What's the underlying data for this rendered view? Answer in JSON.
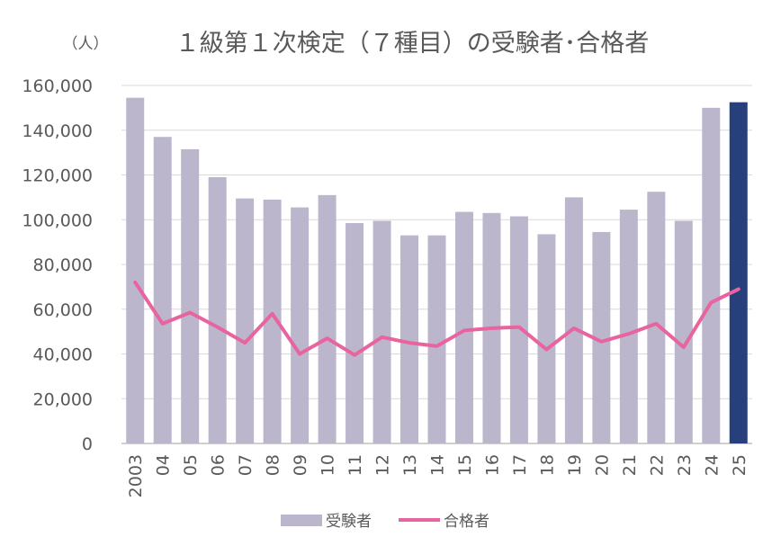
{
  "chart_data": {
    "type": "bar",
    "title": "１級第１次検定（７種目）の受験者･合格者",
    "unit_label": "（人）",
    "categories": [
      "2003",
      "04",
      "05",
      "06",
      "07",
      "08",
      "09",
      "10",
      "11",
      "12",
      "13",
      "14",
      "15",
      "16",
      "17",
      "18",
      "19",
      "20",
      "21",
      "22",
      "23",
      "24",
      "25"
    ],
    "series": [
      {
        "name": "受験者",
        "type": "bar",
        "values": [
          154500,
          137000,
          131500,
          119000,
          109500,
          109000,
          105500,
          111000,
          98500,
          99500,
          93000,
          93000,
          103500,
          103000,
          101500,
          93500,
          110000,
          94500,
          104500,
          112500,
          99500,
          150000,
          152500
        ]
      },
      {
        "name": "合格者",
        "type": "line",
        "values": [
          72000,
          53500,
          58500,
          52000,
          45000,
          58000,
          40000,
          47000,
          39500,
          47500,
          45000,
          43500,
          50500,
          51500,
          52000,
          42000,
          51500,
          45500,
          49000,
          53500,
          43000,
          63000,
          69000
        ]
      }
    ],
    "ylim": [
      0,
      160000
    ],
    "yticks": [
      0,
      20000,
      40000,
      60000,
      80000,
      100000,
      120000,
      140000,
      160000
    ],
    "ytick_labels": [
      "0",
      "20,000",
      "40,000",
      "60,000",
      "80,000",
      "100,000",
      "120,000",
      "140,000",
      "160,000"
    ],
    "grid": true,
    "legend_position": "bottom",
    "colors": {
      "bar": "#bcb6cd",
      "bar_highlight": "#27407c",
      "line": "#e8649e",
      "grid": "#d9d9d9",
      "axis": "#bfbfbf",
      "text": "#595959"
    },
    "highlight_index": 22
  }
}
